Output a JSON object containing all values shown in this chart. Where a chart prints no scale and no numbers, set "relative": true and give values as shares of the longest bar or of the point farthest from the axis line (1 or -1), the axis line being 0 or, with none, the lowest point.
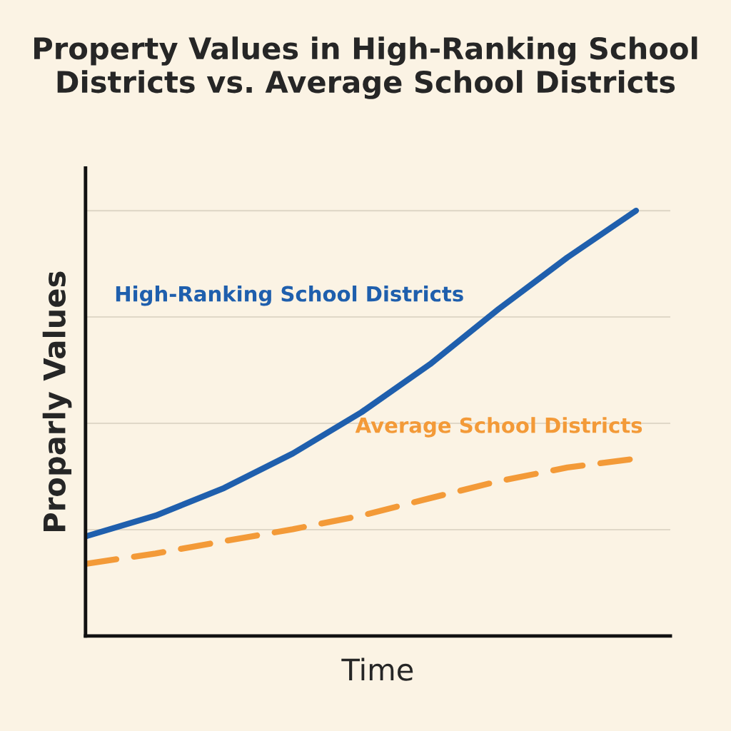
{
  "chart_data": {
    "type": "line",
    "title": "Property Values in High-Ranking School Districts vs. Average School Districts",
    "xlabel": "Time",
    "ylabel": "Proparly Values",
    "relative": true,
    "grid": "y",
    "tick_labels": false,
    "categories": [
      null,
      null,
      null,
      null,
      null,
      null,
      null,
      null,
      null
    ],
    "series": [
      {
        "name": "High-Ranking School Districts",
        "color": "#1f5fad",
        "line_style": "solid",
        "values": [
          0.235,
          0.283,
          0.348,
          0.429,
          0.526,
          0.639,
          0.769,
          0.89,
          1
        ]
      },
      {
        "name": "Average School Districts",
        "color": "#f39a38",
        "line_style": "dashed",
        "values": [
          0.17,
          0.194,
          0.223,
          0.251,
          0.283,
          0.324,
          0.364,
          0.396,
          0.417
        ]
      }
    ]
  }
}
